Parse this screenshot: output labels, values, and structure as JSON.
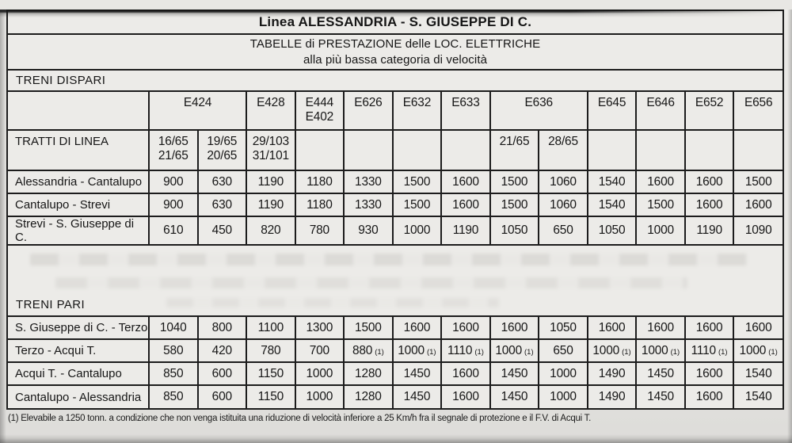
{
  "colors": {
    "paper": "#e8e7e4",
    "ink": "#161616",
    "line": "#1c1c1c"
  },
  "page": {
    "title": "Linea ALESSANDRIA - S. GIUSEPPE DI C.",
    "subtitle_line1": "TABELLE di PRESTAZIONE delle LOC. ELETTRICHE",
    "subtitle_line2": "alla più bassa categoria di velocità",
    "footnote": "(1) Elevabile a 1250 tonn. a condizione che non venga istituita una riduzione di velocità inferiore a 25 Km/h fra il segnale di protezione e il F.V. di Acqui T."
  },
  "sections": {
    "odd_label": "TRENI DISPARI",
    "even_label": "TRENI PARI",
    "row_header_label": "TRATTI DI LINEA"
  },
  "columns": [
    {
      "label": "E424",
      "span": 2
    },
    {
      "label": "E428",
      "span": 1
    },
    {
      "label": "E444",
      "label2": "E402",
      "span": 1
    },
    {
      "label": "E626",
      "span": 1
    },
    {
      "label": "E632",
      "span": 1
    },
    {
      "label": "E633",
      "span": 1
    },
    {
      "label": "E636",
      "span": 2
    },
    {
      "label": "E645",
      "span": 1
    },
    {
      "label": "E646",
      "span": 1
    },
    {
      "label": "E652",
      "span": 1
    },
    {
      "label": "E656",
      "span": 1
    }
  ],
  "tratti": [
    "16/65\n21/65",
    "19/65\n20/65",
    "29/103\n31/101",
    "",
    "",
    "",
    "",
    "21/65",
    "28/65",
    "",
    "",
    "",
    ""
  ],
  "odd_rows": [
    {
      "label": "Alessandria - Cantalupo",
      "values": [
        "900",
        "630",
        "1190",
        "1180",
        "1330",
        "1500",
        "1600",
        "1500",
        "1060",
        "1540",
        "1600",
        "1600",
        "1500"
      ]
    },
    {
      "label": "Cantalupo - Strevi",
      "values": [
        "900",
        "630",
        "1190",
        "1180",
        "1330",
        "1500",
        "1600",
        "1500",
        "1060",
        "1540",
        "1500",
        "1600",
        "1600"
      ]
    },
    {
      "label": "Strevi - S. Giuseppe di C.",
      "values": [
        "610",
        "450",
        "820",
        "780",
        "930",
        "1000",
        "1190",
        "1050",
        "650",
        "1050",
        "1000",
        "1190",
        "1090"
      ]
    }
  ],
  "even_rows": [
    {
      "label": "S. Giuseppe di C. - Terzo",
      "values": [
        "1040",
        "800",
        "1100",
        "1300",
        "1500",
        "1600",
        "1600",
        "1600",
        "1050",
        "1600",
        "1600",
        "1600",
        "1600"
      ]
    },
    {
      "label": "Terzo - Acqui T.",
      "values": [
        "580",
        "420",
        "780",
        "700",
        {
          "v": "880",
          "n": "(1)"
        },
        {
          "v": "1000",
          "n": "(1)"
        },
        {
          "v": "1110",
          "n": "(1)"
        },
        {
          "v": "1000",
          "n": "(1)"
        },
        "650",
        {
          "v": "1000",
          "n": "(1)"
        },
        {
          "v": "1000",
          "n": "(1)"
        },
        {
          "v": "1110",
          "n": "(1)"
        },
        {
          "v": "1000",
          "n": "(1)"
        }
      ]
    },
    {
      "label": "Acqui T. - Cantalupo",
      "values": [
        "850",
        "600",
        "1150",
        "1000",
        "1280",
        "1450",
        "1600",
        "1450",
        "1000",
        "1490",
        "1450",
        "1600",
        "1540"
      ]
    },
    {
      "label": "Cantalupo - Alessandria",
      "values": [
        "850",
        "600",
        "1150",
        "1000",
        "1280",
        "1450",
        "1600",
        "1450",
        "1000",
        "1490",
        "1450",
        "1600",
        "1540"
      ]
    }
  ]
}
